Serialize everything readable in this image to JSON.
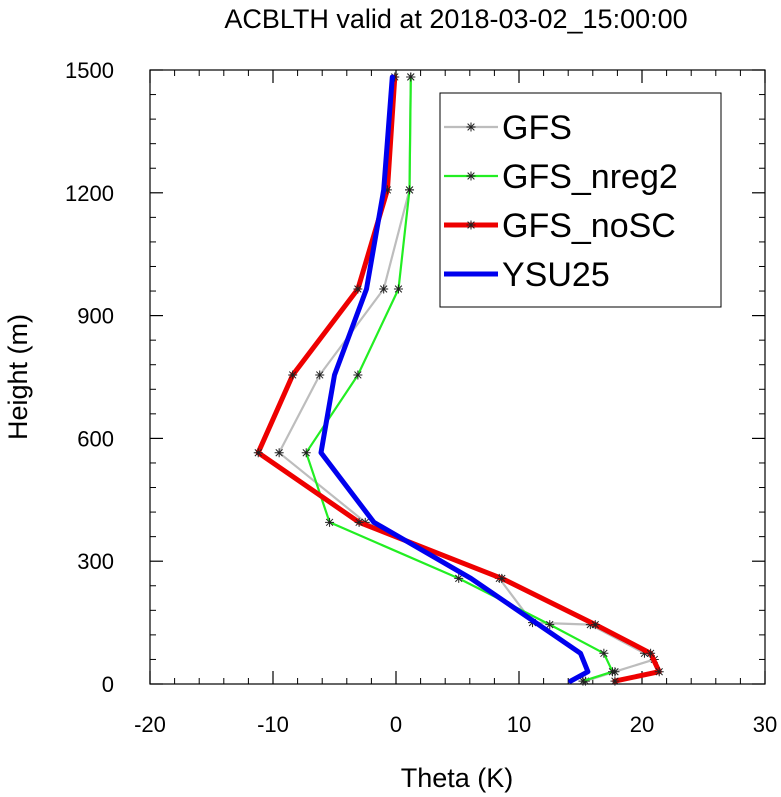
{
  "chart_data": {
    "type": "line",
    "title": "ACBLTH valid at 2018-03-02_15:00:00",
    "xlabel": "Theta (K)",
    "ylabel": "Height (m)",
    "xlim": [
      -20,
      30
    ],
    "ylim": [
      0,
      1500
    ],
    "xticks": [
      "-20",
      "-10",
      "0",
      "10",
      "20",
      "30"
    ],
    "xtick_values": [
      -20,
      -10,
      0,
      10,
      20,
      30
    ],
    "yticks": [
      "0",
      "300",
      "600",
      "900",
      "1200",
      "1500"
    ],
    "ytick_values": [
      0,
      300,
      600,
      900,
      1200,
      1500
    ],
    "grid": false,
    "legend_position": "top-right",
    "series": [
      {
        "name": "GFS",
        "color": "#bdbdbd",
        "width": "thin",
        "markers": true,
        "x": [
          15.4,
          17.8,
          21.0,
          20.2,
          15.8,
          11.1,
          8.4,
          -2.5,
          -9.5,
          -6.2,
          -1.0,
          1.1,
          1.2
        ],
        "y": [
          7,
          30,
          60,
          75,
          145,
          150,
          258,
          395,
          565,
          755,
          965,
          1207,
          1483
        ]
      },
      {
        "name": "GFS_nreg2",
        "color": "#22ee22",
        "width": "thin",
        "markers": true,
        "x": [
          15.2,
          17.6,
          16.9,
          12.5,
          5.1,
          -5.4,
          -7.3,
          -3.1,
          0.2,
          1.1,
          1.2
        ],
        "y": [
          7,
          30,
          75,
          145,
          258,
          395,
          565,
          755,
          965,
          1207,
          1483
        ]
      },
      {
        "name": "GFS_noSC",
        "color": "#ee0000",
        "width": "thick",
        "markers": true,
        "x": [
          17.8,
          21.4,
          20.7,
          16.2,
          8.6,
          -3.0,
          -11.2,
          -8.4,
          -3.1,
          -0.7,
          -0.1
        ],
        "y": [
          7,
          30,
          75,
          145,
          258,
          395,
          565,
          755,
          965,
          1207,
          1483
        ]
      },
      {
        "name": "YSU25",
        "color": "#0000ee",
        "width": "thick",
        "markers": false,
        "x": [
          14.2,
          15.6,
          15.0,
          6.1,
          -1.8,
          -6.1,
          -5.0,
          -2.4,
          -1.0,
          -0.3
        ],
        "y": [
          7,
          30,
          75,
          258,
          395,
          565,
          755,
          965,
          1207,
          1483
        ]
      }
    ]
  }
}
